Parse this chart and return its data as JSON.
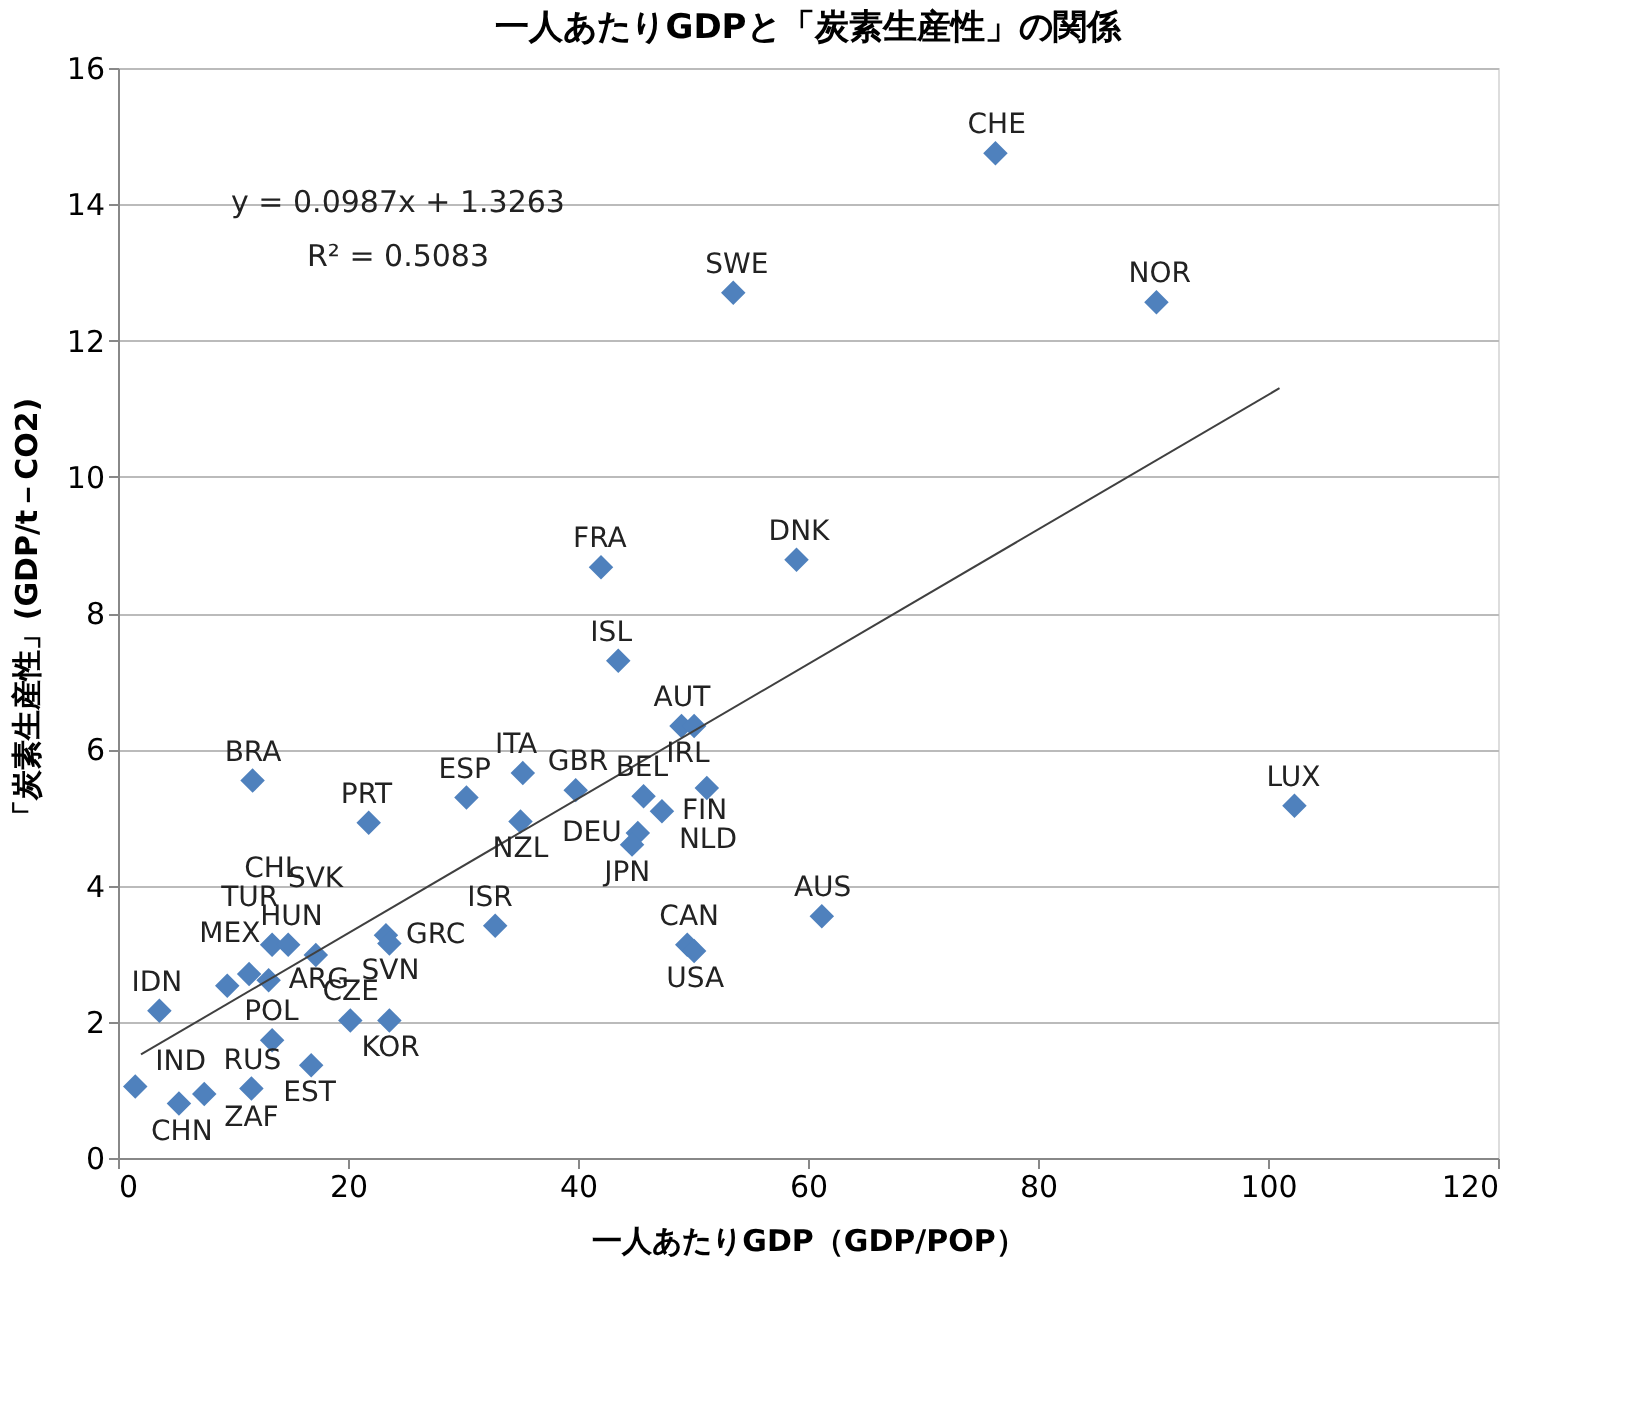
{
  "chart_data": {
    "type": "scatter",
    "title": "一人あたりGDPと「炭素生産性」の関係",
    "xlabel": "一人あたりGDP（GDP/POP）",
    "ylabel": "「炭素生産性」(GDP/t－CO2)",
    "xlim": [
      0,
      120
    ],
    "xticks": [
      0,
      20,
      40,
      60,
      80,
      100,
      120
    ],
    "ylim": [
      0,
      16
    ],
    "yticks": [
      0,
      2,
      4,
      6,
      8,
      10,
      12,
      14,
      16
    ],
    "grid": "y",
    "legend": false,
    "series": [
      {
        "color": "#4f81bd",
        "marker": "diamond",
        "x": [
          76.3,
          53.5,
          90.3,
          42.0,
          59.0,
          43.5,
          49.0,
          50.1,
          11.7,
          102.3,
          35.2,
          30.3,
          21.8,
          35.0,
          39.8,
          45.7,
          47.3,
          51.2,
          45.2,
          44.7,
          32.8,
          49.5,
          50.1,
          61.2,
          1.5,
          3.6,
          5.3,
          7.5,
          11.6,
          16.8,
          13.4,
          20.2,
          23.6,
          9.5,
          11.4,
          13.1,
          13.4,
          14.8,
          17.2,
          23.3,
          23.6
        ],
        "values": [
          14.75,
          12.7,
          12.56,
          8.67,
          8.78,
          7.3,
          6.34,
          6.34,
          5.54,
          5.17,
          5.65,
          5.29,
          4.92,
          4.94,
          5.4,
          5.31,
          5.09,
          5.43,
          4.77,
          4.6,
          3.41,
          3.13,
          3.04,
          3.55,
          1.05,
          2.16,
          0.8,
          0.94,
          1.02,
          1.36,
          1.73,
          2.02,
          2.02,
          2.53,
          2.7,
          2.61,
          3.13,
          3.13,
          2.98,
          3.27,
          3.15
        ]
      },
      {
        "color": "#404040",
        "type": "line",
        "x": [
          2,
          101
        ],
        "values": [
          1.52,
          11.3
        ]
      }
    ],
    "annotations": [
      {
        "text": "CHE",
        "x": 76.3,
        "y": 14.75
      },
      {
        "text": "SWE",
        "x": 53.5,
        "y": 12.7
      },
      {
        "text": "NOR",
        "x": 90.3,
        "y": 12.56
      },
      {
        "text": "FRA",
        "x": 42.0,
        "y": 8.67
      },
      {
        "text": "DNK",
        "x": 59.0,
        "y": 8.78
      },
      {
        "text": "ISL",
        "x": 43.5,
        "y": 7.3
      },
      {
        "text": "AUT",
        "x": 49.0,
        "y": 6.34
      },
      {
        "text": "IRL",
        "x": 50.1,
        "y": 6.34
      },
      {
        "text": "BRA",
        "x": 11.7,
        "y": 5.54
      },
      {
        "text": "LUX",
        "x": 102.3,
        "y": 5.17
      },
      {
        "text": "ITA",
        "x": 35.2,
        "y": 5.65
      },
      {
        "text": "ESP",
        "x": 30.3,
        "y": 5.29
      },
      {
        "text": "PRT",
        "x": 21.8,
        "y": 4.92
      },
      {
        "text": "NZL",
        "x": 35.0,
        "y": 4.94
      },
      {
        "text": "GBR",
        "x": 39.8,
        "y": 5.4
      },
      {
        "text": "BEL",
        "x": 45.7,
        "y": 5.31
      },
      {
        "text": "FIN",
        "x": 47.3,
        "y": 5.09
      },
      {
        "text": "NLD",
        "x": 51.2,
        "y": 5.43
      },
      {
        "text": "DEU",
        "x": 45.2,
        "y": 4.77
      },
      {
        "text": "JPN",
        "x": 44.7,
        "y": 4.6
      },
      {
        "text": "ISR",
        "x": 32.8,
        "y": 3.41
      },
      {
        "text": "CAN",
        "x": 49.5,
        "y": 3.13
      },
      {
        "text": "USA",
        "x": 50.1,
        "y": 3.04
      },
      {
        "text": "AUS",
        "x": 61.2,
        "y": 3.55
      },
      {
        "text": "IND",
        "x": 1.5,
        "y": 1.05
      },
      {
        "text": "IDN",
        "x": 3.6,
        "y": 2.16
      },
      {
        "text": "CHN",
        "x": 5.3,
        "y": 0.8
      },
      {
        "text": "ZAF",
        "x": 7.5,
        "y": 0.94
      },
      {
        "text": "RUS",
        "x": 11.6,
        "y": 1.02
      },
      {
        "text": "EST",
        "x": 16.8,
        "y": 1.36
      },
      {
        "text": "POL",
        "x": 13.4,
        "y": 1.73
      },
      {
        "text": "CZE",
        "x": 20.2,
        "y": 2.02
      },
      {
        "text": "KOR",
        "x": 23.6,
        "y": 2.02
      },
      {
        "text": "MEX",
        "x": 9.5,
        "y": 2.53
      },
      {
        "text": "TUR",
        "x": 11.4,
        "y": 2.7
      },
      {
        "text": "ARG",
        "x": 13.1,
        "y": 2.61
      },
      {
        "text": "CHL",
        "x": 13.4,
        "y": 3.13
      },
      {
        "text": "HUN",
        "x": 14.8,
        "y": 3.13
      },
      {
        "text": "SVK",
        "x": 17.2,
        "y": 2.98
      },
      {
        "text": "GRC",
        "x": 23.3,
        "y": 3.27
      },
      {
        "text": "SVN",
        "x": 23.6,
        "y": 3.15
      },
      "y = 0.0987x + 1.3263",
      "R² = 0.5083"
    ]
  }
}
